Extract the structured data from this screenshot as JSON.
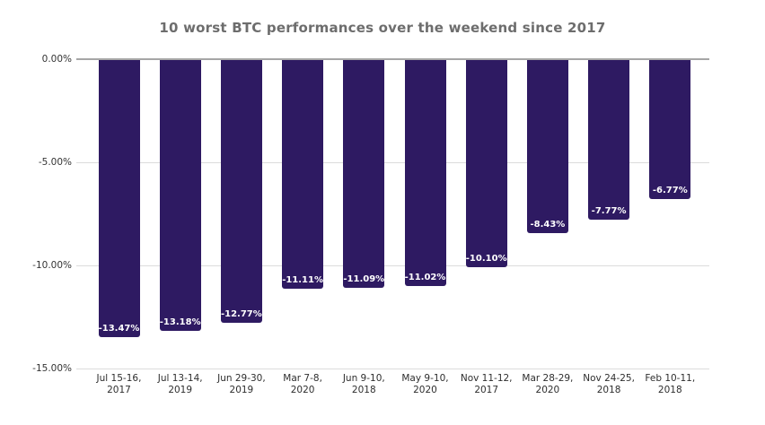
{
  "title": "10 worst BTC performances over the weekend since 2017",
  "chart_data": {
    "type": "bar",
    "title": "10 worst BTC performances over the weekend since 2017",
    "categories": [
      "Jul 15-16,\n2017",
      "Jul 13-14,\n2019",
      "Jun 29-30,\n2019",
      "Mar 7-8,\n2020",
      "Jun 9-10,\n2018",
      "May 9-10,\n2020",
      "Nov 11-12,\n2017",
      "Mar 28-29,\n2020",
      "Nov 24-25,\n2018",
      "Feb 10-11,\n2018"
    ],
    "values": [
      -13.47,
      -13.18,
      -12.77,
      -11.11,
      -11.09,
      -11.02,
      -10.1,
      -8.43,
      -7.77,
      -6.77
    ],
    "bar_labels": [
      "-13.47%",
      "-13.18%",
      "-12.77%",
      "-11.11%",
      "-11.09%",
      "-11.02%",
      "-10.10%",
      "-8.43%",
      "-7.77%",
      "-6.77%"
    ],
    "xlabel": "",
    "ylabel": "",
    "ylim": [
      -15,
      0
    ],
    "y_ticks": [
      {
        "value": 0,
        "label": "0.00%"
      },
      {
        "value": -5,
        "label": "-5.00%"
      },
      {
        "value": -10,
        "label": "-10.00%"
      },
      {
        "value": -15,
        "label": "-15.00%"
      }
    ],
    "grid": true,
    "legend": false,
    "colors": {
      "bar": "#2e1a62",
      "bar_label": "#ffffff",
      "title": "#6d6d6d",
      "axis_label": "#333333",
      "x_axis_label": "#2e2e2e",
      "gridline": "#dcdcdc",
      "zero_line": "#a6a6a6",
      "background": "#ffffff"
    }
  }
}
